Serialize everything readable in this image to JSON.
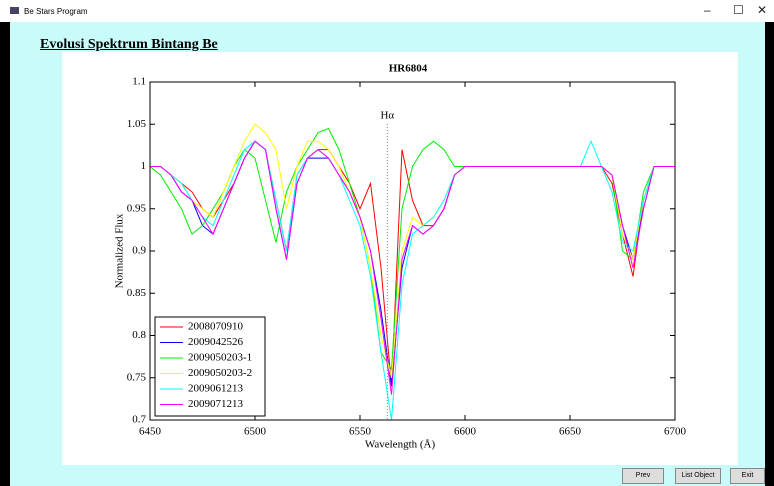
{
  "window": {
    "title": "Be Stars Program"
  },
  "header": {
    "title": "Evolusi Spektrum Bintang Be"
  },
  "buttons": [
    "Prev",
    "List Object",
    "Exit"
  ],
  "chart_data": {
    "type": "line",
    "title": "HR6804",
    "x_label": "Wavelength (Å)",
    "y_label": "Normalized Flux",
    "xlim": [
      6450,
      6700
    ],
    "xticks": [
      6450,
      6500,
      6550,
      6600,
      6650,
      6700
    ],
    "ylim": [
      0.7,
      1.1
    ],
    "yticks": [
      0.7,
      0.75,
      0.8,
      0.85,
      0.9,
      0.95,
      1,
      1.05,
      1.1
    ],
    "grid": false,
    "legend": "lower left",
    "annotation": {
      "text": "Hα",
      "x": 6563
    },
    "x": [
      6450,
      6455,
      6460,
      6465,
      6470,
      6475,
      6480,
      6485,
      6490,
      6495,
      6500,
      6505,
      6510,
      6515,
      6520,
      6525,
      6530,
      6535,
      6540,
      6545,
      6550,
      6555,
      6560,
      6565,
      6570,
      6575,
      6580,
      6585,
      6590,
      6595,
      6600,
      6605,
      6610,
      6615,
      6620,
      6625,
      6630,
      6635,
      6640,
      6645,
      6650,
      6655,
      6660,
      6665,
      6670,
      6675,
      6680,
      6685,
      6690,
      6695,
      6700
    ],
    "series": [
      {
        "name": "2008070910",
        "color": "#ff0000",
        "values": [
          1.0,
          1.0,
          0.99,
          0.98,
          0.97,
          0.95,
          0.94,
          0.96,
          0.98,
          1.01,
          1.03,
          1.02,
          0.96,
          0.9,
          0.99,
          1.01,
          1.02,
          1.02,
          1.0,
          0.98,
          0.95,
          0.98,
          0.88,
          0.74,
          1.02,
          0.96,
          0.93,
          0.93,
          0.95,
          0.99,
          1.0,
          1.0,
          1.0,
          1.0,
          1.0,
          1.0,
          1.0,
          1.0,
          1.0,
          1.0,
          1.0,
          1.0,
          1.0,
          1.0,
          0.98,
          0.92,
          0.87,
          0.96,
          1.0,
          1.0,
          1.0
        ]
      },
      {
        "name": "2009042526",
        "color": "#0000ff",
        "values": [
          1.0,
          1.0,
          0.99,
          0.97,
          0.96,
          0.93,
          0.92,
          0.95,
          0.98,
          1.01,
          1.03,
          1.02,
          0.95,
          0.89,
          0.98,
          1.01,
          1.01,
          1.01,
          0.99,
          0.97,
          0.94,
          0.9,
          0.83,
          0.74,
          0.88,
          0.93,
          0.92,
          0.93,
          0.95,
          0.99,
          1.0,
          1.0,
          1.0,
          1.0,
          1.0,
          1.0,
          1.0,
          1.0,
          1.0,
          1.0,
          1.0,
          1.0,
          1.0,
          1.0,
          0.99,
          0.93,
          0.89,
          0.95,
          1.0,
          1.0,
          1.0
        ]
      },
      {
        "name": "2009050203-1",
        "color": "#00ee00",
        "values": [
          1.0,
          0.99,
          0.97,
          0.95,
          0.92,
          0.93,
          0.95,
          0.97,
          1.0,
          1.02,
          1.01,
          0.96,
          0.91,
          0.97,
          1.0,
          1.02,
          1.04,
          1.045,
          1.02,
          0.98,
          0.94,
          0.88,
          0.78,
          0.76,
          0.95,
          1.0,
          1.02,
          1.03,
          1.02,
          1.0,
          1.0,
          1.0,
          1.0,
          1.0,
          1.0,
          1.0,
          1.0,
          1.0,
          1.0,
          1.0,
          1.0,
          1.0,
          1.0,
          1.0,
          0.99,
          0.9,
          0.89,
          0.97,
          1.0,
          1.0,
          1.0
        ]
      },
      {
        "name": "2009050203-2",
        "color": "#ffff00",
        "values": [
          1.0,
          1.0,
          0.99,
          0.98,
          0.96,
          0.95,
          0.94,
          0.97,
          1.0,
          1.03,
          1.05,
          1.04,
          1.02,
          0.95,
          1.0,
          1.03,
          1.03,
          1.02,
          1.0,
          0.97,
          0.94,
          0.88,
          0.8,
          0.75,
          0.9,
          0.94,
          0.93,
          0.94,
          0.96,
          0.99,
          1.0,
          1.0,
          1.0,
          1.0,
          1.0,
          1.0,
          1.0,
          1.0,
          1.0,
          1.0,
          1.0,
          1.0,
          1.0,
          1.0,
          0.99,
          0.92,
          0.89,
          0.96,
          1.0,
          1.0,
          1.0
        ]
      },
      {
        "name": "2009061213",
        "color": "#00ffff",
        "values": [
          1.0,
          1.0,
          0.99,
          0.98,
          0.96,
          0.94,
          0.93,
          0.96,
          0.99,
          1.02,
          1.03,
          1.02,
          0.96,
          0.9,
          0.99,
          1.01,
          1.02,
          1.01,
          0.99,
          0.96,
          0.93,
          0.87,
          0.78,
          0.7,
          0.86,
          0.92,
          0.93,
          0.94,
          0.96,
          0.99,
          1.0,
          1.0,
          1.0,
          1.0,
          1.0,
          1.0,
          1.0,
          1.0,
          1.0,
          1.0,
          1.0,
          1.0,
          1.03,
          1.0,
          0.97,
          0.91,
          0.9,
          0.96,
          1.0,
          1.0,
          1.0
        ]
      },
      {
        "name": "2009071213",
        "color": "#ff00ff",
        "values": [
          1.0,
          1.0,
          0.99,
          0.97,
          0.96,
          0.94,
          0.92,
          0.95,
          0.98,
          1.01,
          1.03,
          1.02,
          0.95,
          0.89,
          0.98,
          1.01,
          1.02,
          1.01,
          0.99,
          0.97,
          0.94,
          0.9,
          0.82,
          0.73,
          0.89,
          0.93,
          0.92,
          0.93,
          0.95,
          0.99,
          1.0,
          1.0,
          1.0,
          1.0,
          1.0,
          1.0,
          1.0,
          1.0,
          1.0,
          1.0,
          1.0,
          1.0,
          1.0,
          1.0,
          0.99,
          0.93,
          0.88,
          0.95,
          1.0,
          1.0,
          1.0
        ]
      }
    ]
  }
}
